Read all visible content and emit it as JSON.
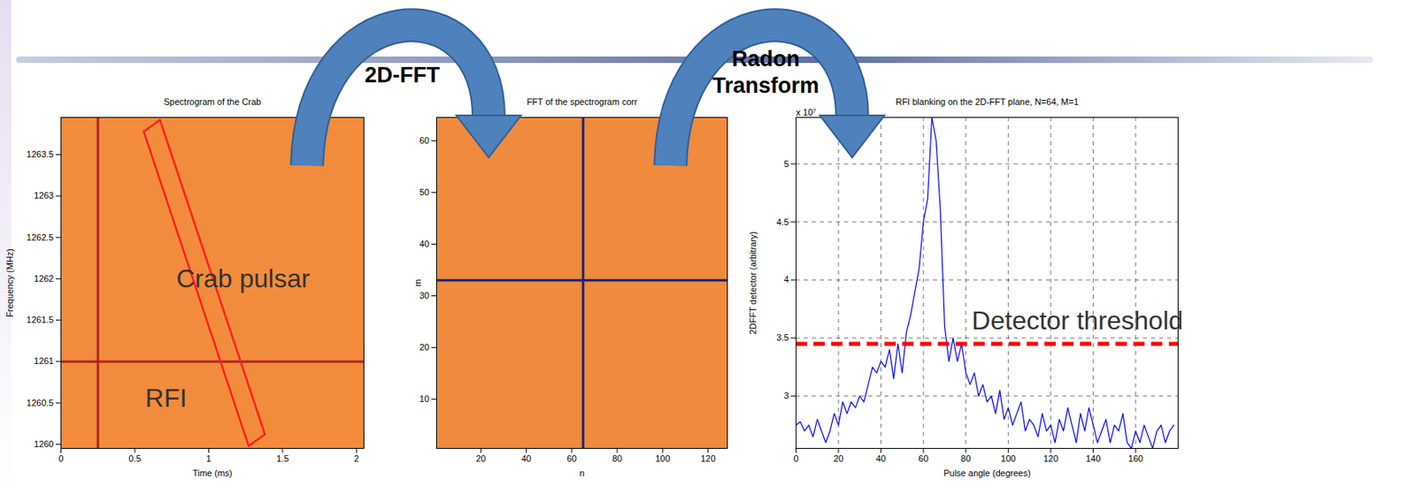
{
  "chart_data": [
    {
      "type": "heatmap",
      "title": "Spectrogram of the Crab",
      "xlabel": "Time (ms)",
      "ylabel": "Frequency (MHz)",
      "xlim": [
        0,
        2.05
      ],
      "ylim": [
        1259.95,
        1263.95
      ],
      "xticks": [
        0,
        0.5,
        1,
        1.5,
        2
      ],
      "yticks": [
        1260,
        1260.5,
        1261,
        1261.5,
        1262,
        1262.5,
        1263,
        1263.5
      ],
      "color": "#f28c3c",
      "lines": [
        {
          "name": "RFI",
          "orientation": "horizontal",
          "value": 1261,
          "color": "#b22222"
        },
        {
          "orientation": "vertical",
          "value": 0.25,
          "color": "#b22222"
        }
      ],
      "outline": {
        "name": "Crab pulsar",
        "x": [
          0.56,
          0.67,
          1.38,
          1.27,
          0.56
        ],
        "y": [
          1263.78,
          1263.92,
          1260.12,
          1259.98,
          1263.78
        ],
        "color": "#ff2020"
      },
      "annotations": [
        {
          "text": "Crab pulsar",
          "x": 0.78,
          "y": 1262
        },
        {
          "text": "RFI",
          "x": 0.57,
          "y": 1260.55
        }
      ]
    },
    {
      "type": "heatmap",
      "title": "FFT of the spectrogram corr",
      "xlabel": "n",
      "ylabel": "m",
      "xlim": [
        0.5,
        128.5
      ],
      "ylim": [
        0.5,
        64.5
      ],
      "xticks": [
        20,
        40,
        60,
        80,
        100,
        120
      ],
      "yticks": [
        10,
        20,
        30,
        40,
        50,
        60
      ],
      "color": "#f08a3c",
      "lines": [
        {
          "orientation": "vertical",
          "value": 65,
          "color": "#1a237e"
        },
        {
          "orientation": "horizontal",
          "value": 33,
          "color": "#1a237e"
        }
      ]
    },
    {
      "type": "line",
      "title": "RFI blanking on the 2D-FFT plane, N=64, M=1",
      "xlabel": "Pulse angle (degrees)",
      "ylabel": "2DFFT detector (arbitrary)",
      "y_multiplier": "x 10⁷",
      "xlim": [
        0,
        180
      ],
      "ylim": [
        2.55,
        5.4
      ],
      "xticks": [
        0,
        20,
        40,
        60,
        80,
        100,
        120,
        140,
        160
      ],
      "yticks": [
        3,
        3.5,
        4,
        4.5,
        5
      ],
      "grid": true,
      "color": "#0000ff",
      "x": [
        0,
        2,
        4,
        6,
        8,
        10,
        12,
        14,
        16,
        18,
        20,
        22,
        24,
        26,
        28,
        30,
        32,
        34,
        36,
        38,
        40,
        42,
        44,
        46,
        48,
        50,
        52,
        54,
        56,
        58,
        60,
        62,
        64,
        66,
        68,
        70,
        72,
        74,
        76,
        78,
        80,
        82,
        84,
        86,
        88,
        90,
        92,
        94,
        96,
        98,
        100,
        102,
        104,
        106,
        108,
        110,
        112,
        114,
        116,
        118,
        120,
        122,
        124,
        126,
        128,
        130,
        132,
        134,
        136,
        138,
        140,
        142,
        144,
        146,
        148,
        150,
        152,
        154,
        156,
        158,
        160,
        162,
        164,
        166,
        168,
        170,
        172,
        174,
        176,
        178
      ],
      "values": [
        2.75,
        2.78,
        2.7,
        2.75,
        2.65,
        2.8,
        2.7,
        2.6,
        2.7,
        2.85,
        2.75,
        2.95,
        2.85,
        2.95,
        2.9,
        3.0,
        2.95,
        3.1,
        3.25,
        3.2,
        3.3,
        3.25,
        3.4,
        3.15,
        3.45,
        3.2,
        3.55,
        3.7,
        3.9,
        4.1,
        4.5,
        4.7,
        5.4,
        5.2,
        4.6,
        3.6,
        3.3,
        3.5,
        3.3,
        3.45,
        3.2,
        3.1,
        3.2,
        3.0,
        3.1,
        2.95,
        3.0,
        2.85,
        3.05,
        2.8,
        2.9,
        2.75,
        2.85,
        2.95,
        2.7,
        2.8,
        2.75,
        2.65,
        2.85,
        2.7,
        2.75,
        2.6,
        2.8,
        2.7,
        2.9,
        2.75,
        2.6,
        2.85,
        2.7,
        2.9,
        2.75,
        2.6,
        2.7,
        2.8,
        2.6,
        2.75,
        2.7,
        2.85,
        2.6,
        2.55,
        2.7,
        2.6,
        2.75,
        2.65,
        2.55,
        2.7,
        2.75,
        2.6,
        2.7,
        2.75
      ],
      "threshold": {
        "value": 3.45,
        "label": "Detector threshold",
        "color": "#ff0000",
        "line_style": "dashed"
      }
    }
  ],
  "arrows": [
    "2D-FFT",
    "Radon Transform"
  ]
}
